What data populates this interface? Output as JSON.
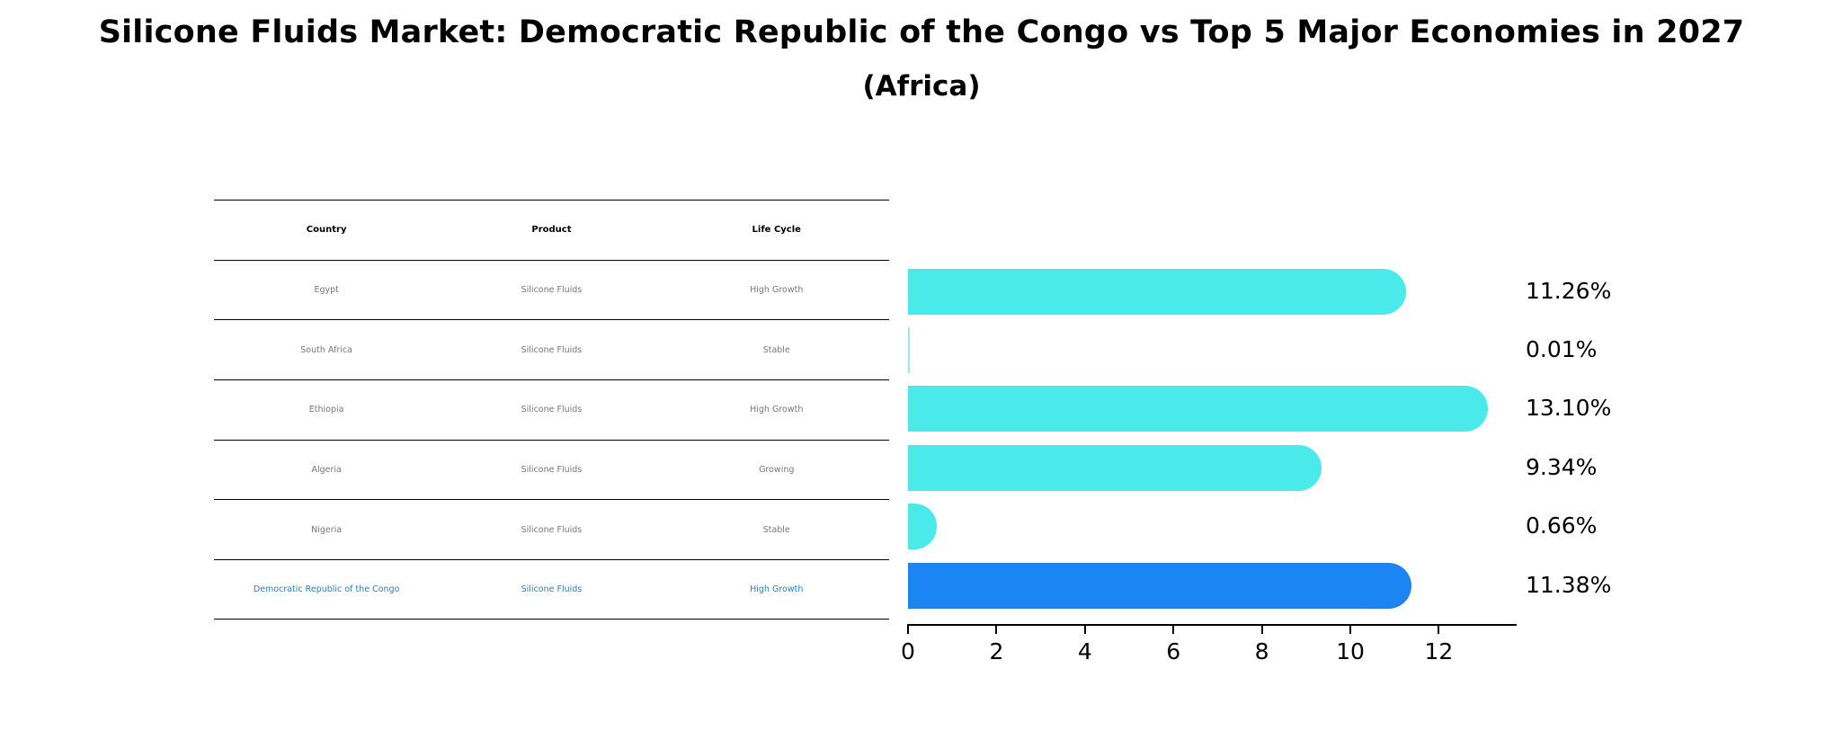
{
  "title": "Silicone Fluids Market: Democratic Republic of the Congo vs Top 5 Major Economies in 2027",
  "subtitle": "(Africa)",
  "table": {
    "headers": [
      "Country",
      "Product",
      "Life Cycle"
    ],
    "rows": [
      [
        "Egypt",
        "Silicone Fluids",
        "High Growth"
      ],
      [
        "South Africa",
        "Silicone Fluids",
        "Stable"
      ],
      [
        "Ethiopia",
        "Silicone Fluids",
        "High Growth"
      ],
      [
        "Algeria",
        "Silicone Fluids",
        "Growing"
      ],
      [
        "Nigeria",
        "Silicone Fluids",
        "Stable"
      ],
      [
        "Democratic Republic of the Congo",
        "Silicone Fluids",
        "High Growth"
      ]
    ],
    "highlight_color": "#2a7fc5",
    "text_color": "#777777"
  },
  "chart_data": {
    "type": "bar",
    "orientation": "horizontal",
    "title": "Silicone Fluids Market: Democratic Republic of the Congo vs Top 5 Major Economies in 2027",
    "subtitle": "(Africa)",
    "categories": [
      "Egypt",
      "South Africa",
      "Ethiopia",
      "Algeria",
      "Nigeria",
      "Democratic Republic of the Congo"
    ],
    "values": [
      11.26,
      0.01,
      13.1,
      9.34,
      0.66,
      11.38
    ],
    "value_labels": [
      "11.26%",
      "0.01%",
      "13.10%",
      "9.34%",
      "0.66%",
      "11.38%"
    ],
    "xlabel": "",
    "ylabel": "",
    "xlim": [
      0,
      13.8
    ],
    "xticks": [
      "0",
      "2",
      "4",
      "6",
      "8",
      "10",
      "12"
    ],
    "grid": false,
    "legend": null,
    "colors": {
      "default": "#4beaea",
      "highlight": "#1b85f3"
    },
    "highlighted_category": "Democratic Republic of the Congo"
  }
}
